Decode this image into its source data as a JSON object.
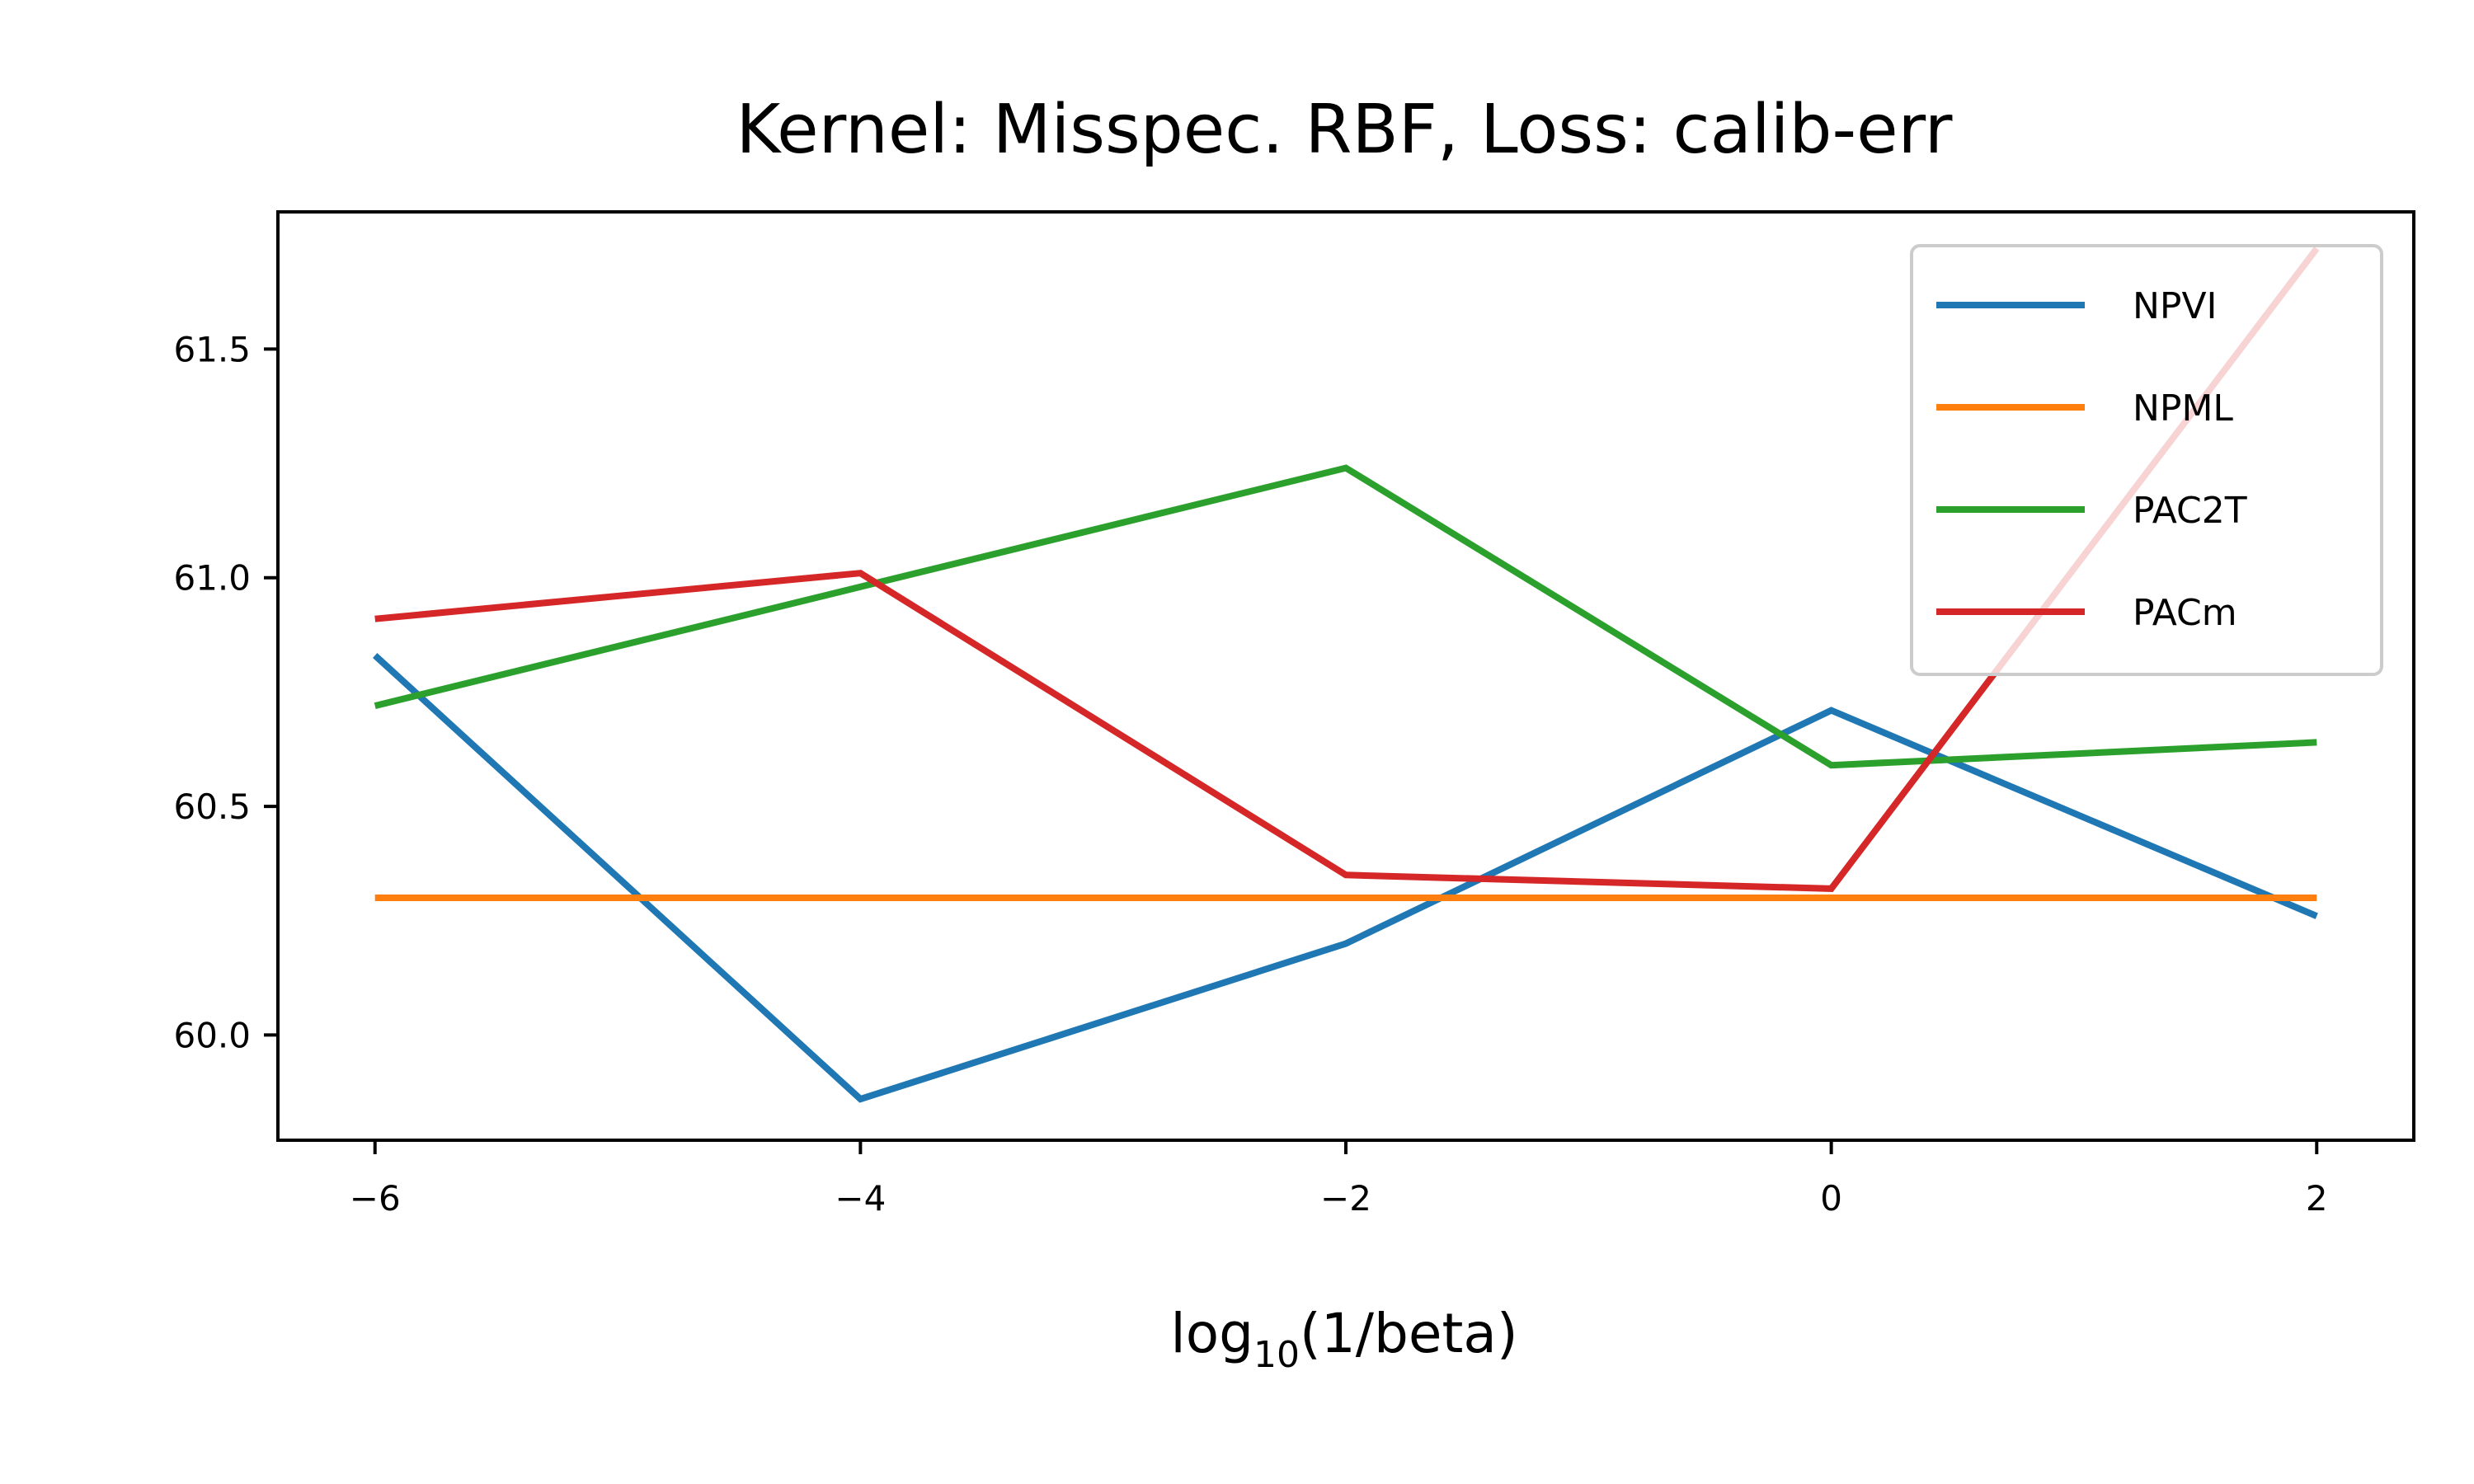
{
  "chart_data": {
    "type": "line",
    "title": "Kernel: Misspec. RBF, Loss: calib-err",
    "xlabel": {
      "base": "log",
      "subscript": "10",
      "rest": "(1/beta)"
    },
    "ylabel": "",
    "x": [
      -6,
      -4,
      -2,
      0,
      2
    ],
    "xlim": [
      -6.4,
      2.4
    ],
    "ylim": [
      59.77,
      61.8
    ],
    "xticks": [
      -6,
      -4,
      -2,
      0,
      2
    ],
    "xtick_labels": [
      "−6",
      "−4",
      "−2",
      "0",
      "2"
    ],
    "yticks": [
      60.0,
      60.5,
      61.0,
      61.5
    ],
    "ytick_labels": [
      "60.0",
      "60.5",
      "61.0",
      "61.5"
    ],
    "grid": false,
    "legend_position": "top-right",
    "series": [
      {
        "name": "NPVI",
        "color": "#1f77b4",
        "values": [
          60.83,
          59.86,
          60.2,
          60.71,
          60.26
        ]
      },
      {
        "name": "NPML",
        "color": "#ff7f0e",
        "values": [
          60.3,
          60.3,
          60.3,
          60.3,
          60.3
        ]
      },
      {
        "name": "PAC2T",
        "color": "#2ca02c",
        "values": [
          60.72,
          60.98,
          61.24,
          60.59,
          60.64
        ]
      },
      {
        "name": "PACm",
        "color": "#d62728",
        "values": [
          60.91,
          61.01,
          60.35,
          60.32,
          61.72
        ]
      }
    ]
  }
}
